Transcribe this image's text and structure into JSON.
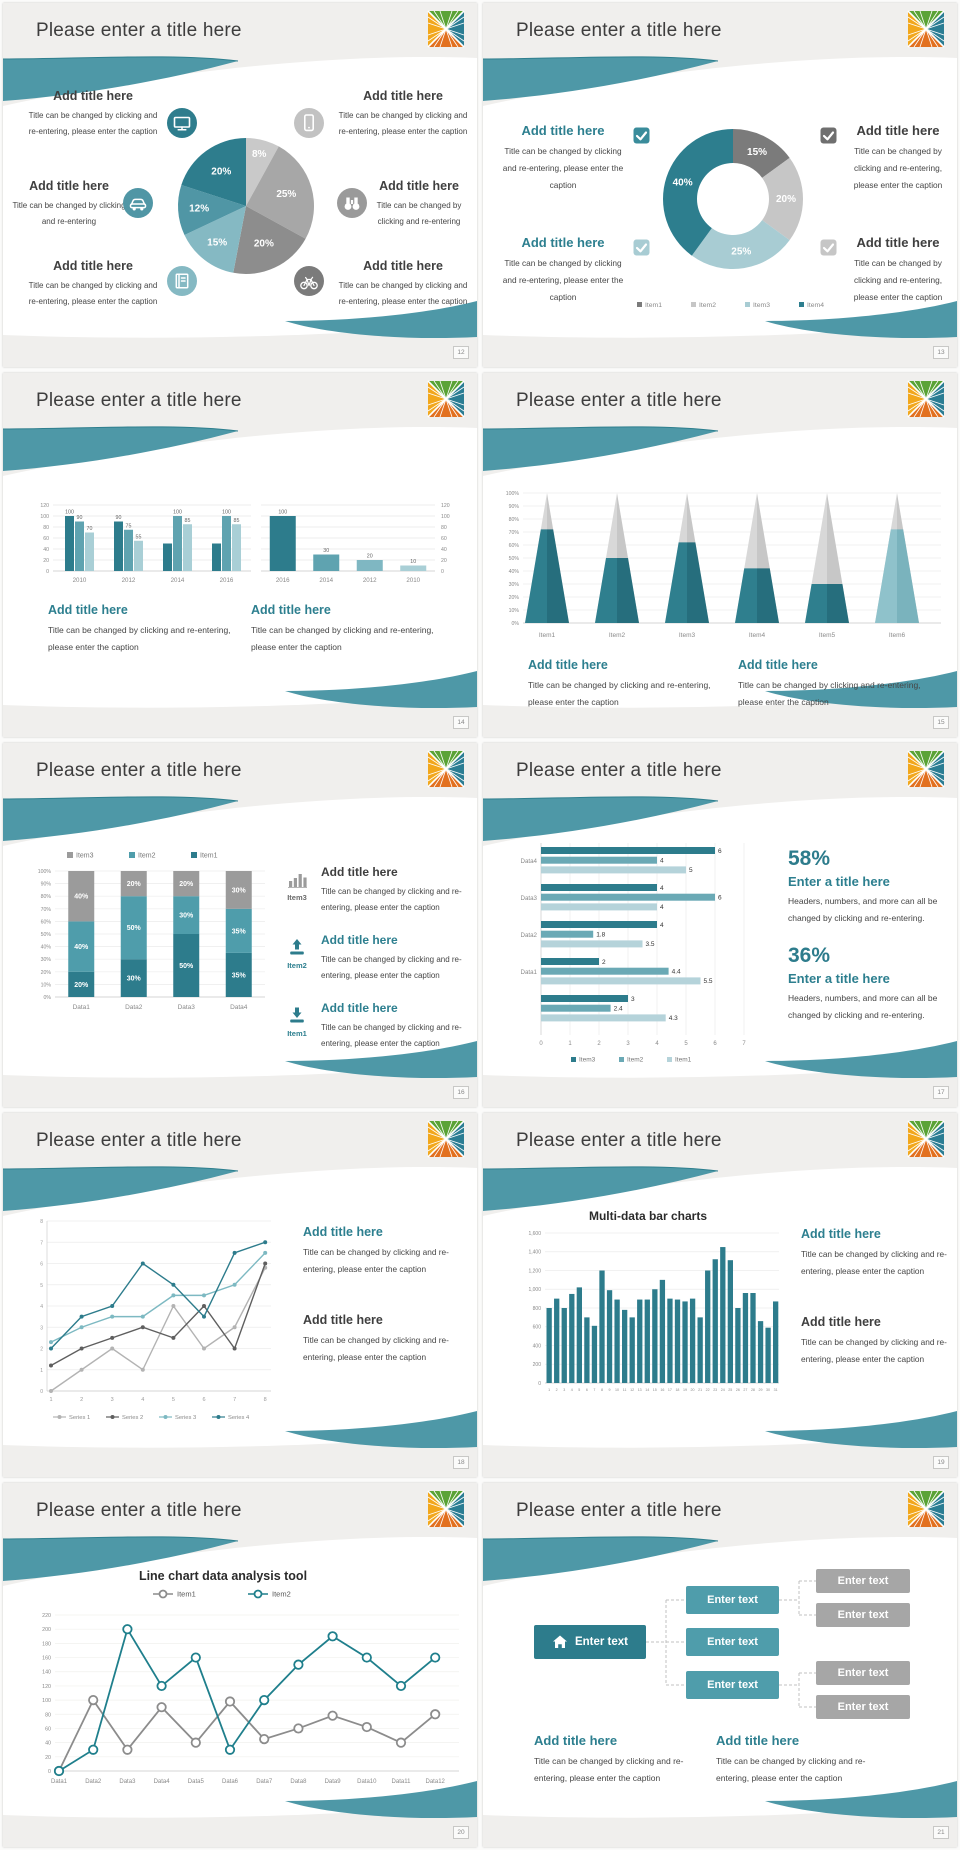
{
  "colors": {
    "accent_teal": "#2d7c8c",
    "teal_mid": "#4f9dab",
    "teal_light": "#85b9c3",
    "heading_teal": "#2d7f8f",
    "text_dark": "#3f3f3f",
    "caption_text": "#464646",
    "swoosh": "#4e98a7",
    "slide_bg": "#f0efed",
    "axis_text": "#8a8a8a"
  },
  "logo": {
    "name": "color-wheel-logo",
    "top": "#5aa336",
    "right": "#2b7d93",
    "bottom": "#e2701f",
    "left": "#f2a71b"
  },
  "slides": [
    {
      "page": "12",
      "title": "Please enter a title here",
      "type": "pie_callouts",
      "chart_data": {
        "type": "pie",
        "slices": [
          {
            "label": "8%",
            "value": 8,
            "color": "#c9c9c9"
          },
          {
            "label": "25%",
            "value": 25,
            "color": "#a7a7a7"
          },
          {
            "label": "20%",
            "value": 20,
            "color": "#8d8d8d"
          },
          {
            "label": "15%",
            "value": 15,
            "color": "#85b9c3"
          },
          {
            "label": "12%",
            "value": 12,
            "color": "#5096a5"
          },
          {
            "label": "20%",
            "value": 20,
            "color": "#2e7d8d"
          }
        ]
      },
      "callouts": [
        {
          "pos": "top-left",
          "title": "Add title here",
          "caption": "Title can be changed by clicking and re-entering, please enter the caption",
          "icon": "monitor-icon",
          "icon_color": "#2e7d8d"
        },
        {
          "pos": "mid-left",
          "title": "Add title here",
          "caption": "Title can be changed by clicking and re-entering",
          "icon": "car-icon",
          "icon_color": "#5096a5"
        },
        {
          "pos": "bottom-left",
          "title": "Add title here",
          "caption": "Title can be changed by clicking and re-entering, please enter the caption",
          "icon": "book-icon",
          "icon_color": "#85b9c3"
        },
        {
          "pos": "top-right",
          "title": "Add title here",
          "caption": "Title can be changed by clicking and re-entering, please enter the caption",
          "icon": "smartphone-icon",
          "icon_color": "#c2c2c2"
        },
        {
          "pos": "mid-right",
          "title": "Add title here",
          "caption": "Title can be changed by clicking and re-entering",
          "icon": "binoculars-icon",
          "icon_color": "#9a9a9a"
        },
        {
          "pos": "bottom-right",
          "title": "Add title here",
          "caption": "Title can be changed by clicking and re-entering, please enter the caption",
          "icon": "bicycle-icon",
          "icon_color": "#7b7b7b"
        }
      ]
    },
    {
      "page": "13",
      "title": "Please enter a title here",
      "type": "donut_callouts",
      "chart_data": {
        "type": "donut",
        "slices": [
          {
            "name": "Item1",
            "label": "15%",
            "value": 15,
            "color": "#7b7b7b"
          },
          {
            "name": "Item2",
            "label": "20%",
            "value": 20,
            "color": "#c6c6c6"
          },
          {
            "name": "Item3",
            "label": "25%",
            "value": 25,
            "color": "#a8ccd3"
          },
          {
            "name": "Item4",
            "label": "40%",
            "value": 40,
            "color": "#2d7e8e"
          }
        ],
        "legend": [
          {
            "label": "Item1",
            "color": "#7b7b7b"
          },
          {
            "label": "Item2",
            "color": "#c6c6c6"
          },
          {
            "label": "Item3",
            "color": "#a8ccd3"
          },
          {
            "label": "Item4",
            "color": "#2d7e8e"
          }
        ]
      },
      "callouts": [
        {
          "pos": "top-left",
          "title": "Add title here",
          "title_color": "teal",
          "checkbox_color": "#3a8c9b",
          "caption": "Title can be changed by clicking and re-entering, please enter the caption"
        },
        {
          "pos": "bottom-left",
          "title": "Add title here",
          "title_color": "teal",
          "checkbox_color": "#a8ccd3",
          "caption": "Title can be changed by clicking and re-entering, please enter the caption"
        },
        {
          "pos": "top-right",
          "title": "Add title here",
          "title_color": "dark",
          "checkbox_color": "#6f6f6f",
          "caption": "Title can be changed by clicking and re-entering, please enter the caption"
        },
        {
          "pos": "bottom-right",
          "title": "Add title here",
          "title_color": "dark",
          "checkbox_color": "#c6c6c6",
          "caption": "Title can be changed by clicking and re-entering, please enter the caption"
        }
      ]
    },
    {
      "page": "14",
      "title": "Please enter a title here",
      "type": "double_bar",
      "chart_data": [
        {
          "type": "bar",
          "ylim": [
            0,
            120
          ],
          "yticks": [
            0,
            20,
            40,
            60,
            80,
            100,
            120
          ],
          "colors": [
            "#2d7c8c",
            "#5fa3b0",
            "#a9cfd6"
          ],
          "groups": [
            {
              "category": "2010",
              "values": [
                100,
                90,
                70
              ],
              "labels": [
                "100",
                "90",
                "70"
              ]
            },
            {
              "category": "2012",
              "values": [
                90,
                75,
                55
              ],
              "labels": [
                "90",
                "75",
                "55"
              ]
            },
            {
              "category": "2014",
              "values": [
                50,
                100,
                85
              ],
              "labels": [
                "",
                "100",
                "85"
              ]
            },
            {
              "category": "2016",
              "values": [
                50,
                100,
                85
              ],
              "labels": [
                "",
                "100",
                "85"
              ]
            }
          ]
        },
        {
          "type": "bar",
          "ylim": [
            0,
            120
          ],
          "yticks": [
            0,
            20,
            40,
            60,
            80,
            100,
            120
          ],
          "yaxis": "right",
          "bars": [
            {
              "category": "2016",
              "value": 100,
              "color": "#2d7c8c"
            },
            {
              "category": "2014",
              "value": 30,
              "color": "#5fa3b0"
            },
            {
              "category": "2012",
              "value": 20,
              "color": "#7fb7c2"
            },
            {
              "category": "2010",
              "value": 10,
              "color": "#a9cfd6"
            }
          ]
        }
      ],
      "blocks": [
        {
          "title": "Add title here",
          "title_color": "teal",
          "caption": "Title can be changed by clicking and re-entering, please enter the caption"
        },
        {
          "title": "Add title here",
          "title_color": "teal",
          "caption": "Title can be changed by clicking and re-entering, please enter the caption"
        }
      ]
    },
    {
      "page": "15",
      "title": "Please enter a title here",
      "type": "pyramids",
      "chart_data": {
        "type": "pyramid",
        "yticks": [
          "0%",
          "10%",
          "20%",
          "30%",
          "40%",
          "50%",
          "60%",
          "70%",
          "80%",
          "90%",
          "100%"
        ],
        "items": [
          {
            "category": "Item1",
            "value": 72,
            "light": false
          },
          {
            "category": "Item2",
            "value": 50,
            "light": false
          },
          {
            "category": "Item3",
            "value": 62,
            "light": false
          },
          {
            "category": "Item4",
            "value": 42,
            "light": false
          },
          {
            "category": "Item5",
            "value": 30,
            "light": false
          },
          {
            "category": "Item6",
            "value": 72,
            "light": true
          }
        ]
      },
      "blocks": [
        {
          "title": "Add title here",
          "title_color": "teal",
          "caption": "Title can be changed by clicking and re-entering, please enter the caption"
        },
        {
          "title": "Add title here",
          "title_color": "teal",
          "caption": "Title can be changed by clicking and re-entering, please enter the caption"
        }
      ]
    },
    {
      "page": "16",
      "title": "Please enter a title here",
      "type": "stacked_features",
      "chart_data": {
        "type": "stacked-bar",
        "categories": [
          "Data1",
          "Data2",
          "Data3",
          "Data4"
        ],
        "yticks": [
          "0%",
          "10%",
          "20%",
          "30%",
          "40%",
          "50%",
          "60%",
          "70%",
          "80%",
          "90%",
          "100%"
        ],
        "series": [
          {
            "name": "Item1",
            "color": "#2d7c8c",
            "values": [
              20,
              30,
              50,
              35
            ]
          },
          {
            "name": "Item2",
            "color": "#4f9dab",
            "values": [
              40,
              50,
              30,
              35
            ]
          },
          {
            "name": "Item3",
            "color": "#9b9b9b",
            "values": [
              40,
              20,
              20,
              30
            ]
          }
        ],
        "legend_order": [
          "Item3",
          "Item2",
          "Item1"
        ]
      },
      "features": [
        {
          "item": "Item3",
          "item_color": "dark",
          "icon": "bar-chart-icon",
          "icon_color": "#9b9b9b",
          "title": "Add title here",
          "title_color": "dark",
          "caption": "Title can be changed by clicking and re-entering, please enter the caption"
        },
        {
          "item": "Item2",
          "item_color": "teal",
          "icon": "upload-icon",
          "icon_color": "#2d7c8c",
          "title": "Add title here",
          "title_color": "teal",
          "caption": "Title can be changed by clicking and re-entering, please enter the caption"
        },
        {
          "item": "Item1",
          "item_color": "teal",
          "icon": "download-icon",
          "icon_color": "#2d7c8c",
          "title": "Add title here",
          "title_color": "teal",
          "caption": "Title can be changed by clicking and re-entering, please enter the caption"
        }
      ]
    },
    {
      "page": "17",
      "title": "Please enter a title here",
      "type": "hbar_stats",
      "chart_data": {
        "type": "hbar",
        "xlim": [
          0,
          7
        ],
        "xticks": [
          0,
          1,
          2,
          3,
          4,
          5,
          6,
          7
        ],
        "series": [
          {
            "name": "Item3",
            "color": "#2d7c8c"
          },
          {
            "name": "Item2",
            "color": "#6aa9b5"
          },
          {
            "name": "Item1",
            "color": "#b5d3da"
          }
        ],
        "groups": [
          {
            "category": "Data4",
            "values": [
              6,
              4,
              5
            ]
          },
          {
            "category": "Data3",
            "values": [
              4,
              6,
              4
            ]
          },
          {
            "category": "Data2",
            "values": [
              4,
              1.8,
              3.5
            ]
          },
          {
            "category": "Data1",
            "values": [
              2,
              4.4,
              5.5
            ]
          },
          {
            "category": "",
            "values": [
              3,
              2.4,
              4.3
            ]
          }
        ]
      },
      "stats": [
        {
          "value": "58%",
          "title": "Enter a title here",
          "caption": "Headers, numbers, and more can all be changed by clicking and re-entering."
        },
        {
          "value": "36%",
          "title": "Enter a title here",
          "caption": "Headers, numbers, and more can all be changed by clicking and re-entering."
        }
      ]
    },
    {
      "page": "18",
      "title": "Please enter a title here",
      "type": "lines_blocks",
      "chart_data": {
        "type": "line",
        "x": [
          1,
          2,
          3,
          4,
          5,
          6,
          7,
          8
        ],
        "ylim": [
          0,
          8
        ],
        "yticks": [
          0,
          1,
          2,
          3,
          4,
          5,
          6,
          7,
          8
        ],
        "series": [
          {
            "name": "Series 1",
            "color": "#b3b3b3",
            "values": [
              0,
              1,
              2,
              1,
              4,
              2,
              3,
              5.8
            ]
          },
          {
            "name": "Series 2",
            "color": "#5f5f5f",
            "values": [
              1.2,
              2,
              2.5,
              3,
              2.5,
              4,
              2,
              6
            ]
          },
          {
            "name": "Series 3",
            "color": "#7db9c2",
            "values": [
              2.3,
              3,
              3.5,
              3.5,
              4.5,
              4.5,
              5,
              6.5
            ]
          },
          {
            "name": "Series 4",
            "color": "#2d7c8c",
            "values": [
              2,
              3.5,
              4,
              6,
              5,
              3.5,
              6.5,
              7
            ]
          }
        ]
      },
      "blocks": [
        {
          "title": "Add title here",
          "title_color": "teal",
          "caption": "Title can be changed by clicking and re-entering, please enter the caption"
        },
        {
          "title": "Add title here",
          "title_color": "dark",
          "caption": "Title can be changed by clicking and re-entering, please enter the caption"
        }
      ]
    },
    {
      "page": "19",
      "title": "Please enter a title here",
      "type": "columns_blocks",
      "chart_data": {
        "type": "bar",
        "title": "Multi-data bar charts",
        "x_labels": [
          "1",
          "2",
          "3",
          "4",
          "5",
          "6",
          "7",
          "8",
          "9",
          "10",
          "11",
          "12",
          "13",
          "14",
          "15",
          "16",
          "17",
          "18",
          "19",
          "20",
          "21",
          "22",
          "23",
          "24",
          "25",
          "26",
          "27",
          "28",
          "29",
          "30",
          "31"
        ],
        "values": [
          800,
          900,
          800,
          950,
          1020,
          700,
          610,
          1200,
          990,
          890,
          780,
          700,
          890,
          890,
          1000,
          1100,
          900,
          890,
          870,
          900,
          700,
          1200,
          1320,
          1450,
          1310,
          800,
          960,
          960,
          660,
          590,
          870
        ],
        "ylim": [
          0,
          1600
        ],
        "yticks": [
          "0",
          "200",
          "400",
          "600",
          "800",
          "1,000",
          "1,200",
          "1,400",
          "1,600"
        ],
        "bar_color": "#2d7c8c"
      },
      "blocks": [
        {
          "title": "Add title here",
          "title_color": "teal",
          "caption": "Title can be changed by clicking and re-entering, please enter the caption"
        },
        {
          "title": "Add title here",
          "title_color": "dark",
          "caption": "Title can be changed by clicking and re-entering, please enter the caption"
        }
      ]
    },
    {
      "page": "20",
      "title": "Please enter a title here",
      "type": "line2",
      "chart_data": {
        "type": "line",
        "title": "Line chart data analysis tool",
        "categories": [
          "Data1",
          "Data2",
          "Data3",
          "Data4",
          "Data5",
          "Data6",
          "Data7",
          "Data8",
          "Data9",
          "Data10",
          "Data11",
          "Data12"
        ],
        "ylim": [
          0,
          220
        ],
        "yticks": [
          0,
          20,
          40,
          60,
          80,
          100,
          120,
          140,
          160,
          180,
          200,
          220
        ],
        "series": [
          {
            "name": "Item1",
            "color": "#8c8c8c",
            "values": [
              0,
              100,
              30,
              90,
              40,
              98,
              45,
              60,
              78,
              62,
              40,
              80
            ]
          },
          {
            "name": "Item2",
            "color": "#1f7f8c",
            "values": [
              0,
              30,
              200,
              120,
              160,
              30,
              100,
              150,
              190,
              160,
              120,
              160
            ]
          }
        ]
      }
    },
    {
      "page": "21",
      "title": "Please enter a title here",
      "type": "tree_blocks",
      "diagram": {
        "root": {
          "label": "Enter text",
          "icon": "home-icon",
          "color": "#2d7c8c"
        },
        "branches": [
          {
            "label": "Enter text",
            "color": "#4f9dab",
            "children": [
              "Enter text",
              "Enter text"
            ]
          },
          {
            "label": "Enter text",
            "color": "#4f9dab",
            "children": []
          },
          {
            "label": "Enter text",
            "color": "#4f9dab",
            "children": [
              "Enter text",
              "Enter text"
            ]
          }
        ],
        "leaf_color": "#a6a6a6"
      },
      "blocks": [
        {
          "title": "Add title here",
          "title_color": "teal",
          "caption": "Title can be changed by clicking and re-entering, please enter the caption"
        },
        {
          "title": "Add title here",
          "title_color": "teal",
          "caption": "Title can be changed by clicking and re-entering, please enter the caption"
        }
      ]
    }
  ]
}
